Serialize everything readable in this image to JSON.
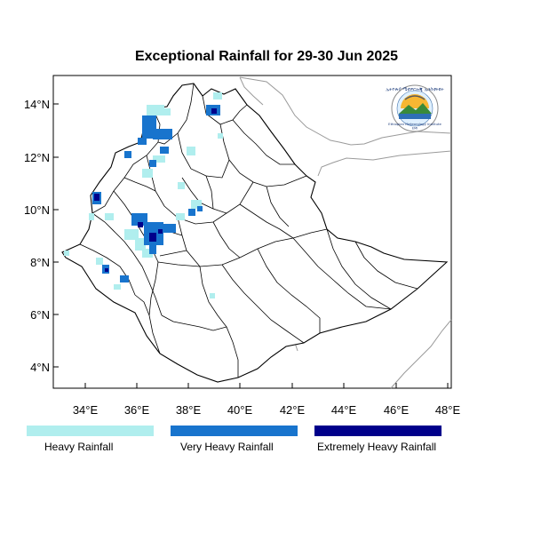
{
  "title": "Exceptional Rainfall for 29-30 Jun 2025",
  "map": {
    "x_axis_labels": [
      "34°E",
      "36°E",
      "38°E",
      "40°E",
      "42°E",
      "44°E",
      "46°E",
      "48°E"
    ],
    "y_axis_labels": [
      "14°N",
      "12°N",
      "10°N",
      "8°N",
      "6°N",
      "4°N"
    ],
    "lon_range": [
      32.9,
      48.2
    ],
    "lat_range": [
      3.2,
      15.0
    ],
    "grid": false
  },
  "legend": [
    {
      "label": "Heavy Rainfall",
      "color": "#b0eeee"
    },
    {
      "label": "Very Heavy Rainfall",
      "color": "#1874cd"
    },
    {
      "label": "Extremely Heavy Rainfall",
      "color": "#00008b"
    }
  ],
  "logo": {
    "icon": "ethiopian-meteorology-institute-logo",
    "caption": "Ethiopian Meteorology Institute",
    "code": "EMI"
  },
  "colors": {
    "heavy": "#b0eeee",
    "very_heavy": "#1874cd",
    "extreme": "#00008b",
    "border": "#000000",
    "neighbor_border": "#9a9a9a"
  }
}
